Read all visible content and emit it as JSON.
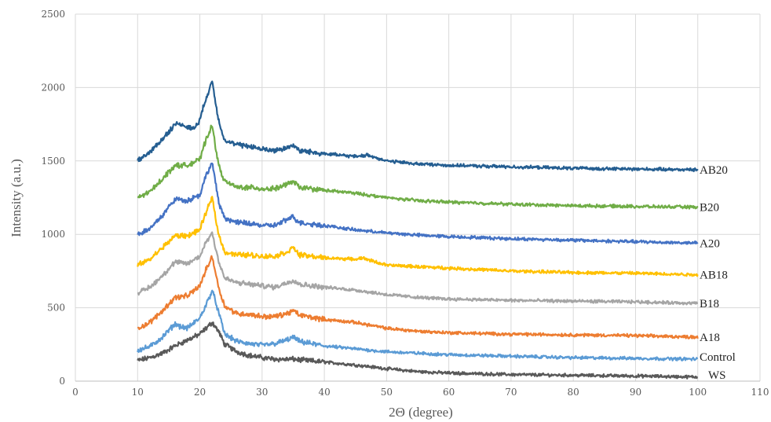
{
  "chart_data": {
    "type": "line",
    "title": "",
    "xlabel": "2Θ (degree)",
    "ylabel": "Intensity (a.u.)",
    "xlim": [
      0,
      110
    ],
    "ylim": [
      0,
      2500
    ],
    "xticks": [
      0,
      10,
      20,
      30,
      40,
      50,
      60,
      70,
      80,
      90,
      100,
      110
    ],
    "yticks": [
      0,
      500,
      1000,
      1500,
      2000,
      2500
    ],
    "grid": true,
    "legend": "inline labels at right end of each series",
    "series": [
      {
        "name": "WS",
        "color": "#595959",
        "x": [
          10,
          12,
          14,
          16,
          18,
          20,
          21,
          22,
          23,
          24,
          26,
          28,
          30,
          32,
          34,
          35,
          36,
          40,
          45,
          50,
          55,
          60,
          70,
          80,
          90,
          100
        ],
        "y": [
          140,
          160,
          190,
          240,
          280,
          320,
          360,
          400,
          340,
          250,
          200,
          175,
          160,
          150,
          148,
          150,
          145,
          130,
          110,
          85,
          65,
          55,
          45,
          40,
          35,
          28
        ]
      },
      {
        "name": "Control",
        "color": "#5b9bd5",
        "x": [
          10,
          12,
          14,
          16,
          17,
          18,
          20,
          21,
          22,
          23,
          24,
          26,
          28,
          30,
          32,
          34,
          35,
          36,
          40,
          45,
          50,
          55,
          60,
          70,
          80,
          90,
          100
        ],
        "y": [
          210,
          235,
          300,
          390,
          370,
          360,
          430,
          520,
          620,
          470,
          320,
          270,
          255,
          245,
          255,
          280,
          300,
          270,
          240,
          220,
          200,
          190,
          180,
          170,
          160,
          155,
          150
        ]
      },
      {
        "name": "A18",
        "color": "#ed7d31",
        "x": [
          10,
          12,
          14,
          16,
          18,
          20,
          21,
          22,
          23,
          24,
          26,
          28,
          30,
          32,
          34,
          35,
          36,
          40,
          45,
          50,
          55,
          60,
          70,
          80,
          90,
          100
        ],
        "y": [
          360,
          400,
          480,
          570,
          580,
          650,
          760,
          850,
          640,
          510,
          460,
          455,
          440,
          440,
          460,
          480,
          450,
          420,
          400,
          360,
          340,
          330,
          320,
          315,
          310,
          300
        ]
      },
      {
        "name": "B18",
        "color": "#a5a5a5",
        "x": [
          10,
          12,
          14,
          16,
          18,
          20,
          21,
          22,
          23,
          24,
          26,
          28,
          30,
          32,
          34,
          35,
          36,
          40,
          45,
          50,
          55,
          60,
          70,
          80,
          90,
          100
        ],
        "y": [
          600,
          640,
          720,
          810,
          800,
          850,
          950,
          1010,
          820,
          700,
          670,
          660,
          650,
          640,
          670,
          690,
          660,
          640,
          620,
          590,
          570,
          560,
          550,
          545,
          540,
          530
        ]
      },
      {
        "name": "AB18",
        "color": "#ffc000",
        "x": [
          10,
          12,
          14,
          16,
          18,
          20,
          21,
          22,
          23,
          24,
          26,
          28,
          30,
          32,
          34,
          35,
          36,
          40,
          45,
          46,
          50,
          55,
          60,
          70,
          80,
          90,
          100
        ],
        "y": [
          790,
          830,
          910,
          990,
          990,
          1030,
          1150,
          1250,
          1000,
          880,
          860,
          860,
          850,
          850,
          880,
          910,
          860,
          840,
          830,
          840,
          790,
          780,
          770,
          750,
          740,
          735,
          725
        ]
      },
      {
        "name": "A20",
        "color": "#4472c4",
        "x": [
          10,
          12,
          14,
          16,
          18,
          20,
          21,
          22,
          23,
          24,
          26,
          28,
          30,
          32,
          34,
          35,
          36,
          40,
          45,
          50,
          55,
          60,
          70,
          80,
          90,
          100
        ],
        "y": [
          1000,
          1040,
          1130,
          1240,
          1230,
          1270,
          1400,
          1490,
          1220,
          1110,
          1080,
          1075,
          1060,
          1060,
          1100,
          1120,
          1080,
          1060,
          1030,
          1010,
          995,
          985,
          970,
          960,
          950,
          940
        ]
      },
      {
        "name": "B20",
        "color": "#70ad47",
        "x": [
          10,
          12,
          14,
          16,
          18,
          20,
          21,
          22,
          23,
          24,
          26,
          28,
          30,
          32,
          34,
          35,
          36,
          40,
          45,
          50,
          55,
          60,
          70,
          80,
          90,
          100
        ],
        "y": [
          1250,
          1290,
          1380,
          1470,
          1470,
          1510,
          1650,
          1740,
          1470,
          1360,
          1320,
          1320,
          1310,
          1310,
          1340,
          1360,
          1320,
          1300,
          1280,
          1250,
          1230,
          1220,
          1205,
          1195,
          1190,
          1185
        ]
      },
      {
        "name": "AB20",
        "color": "#255e91",
        "x": [
          10,
          12,
          14,
          16,
          17,
          18,
          19,
          20,
          21,
          22,
          23,
          24,
          26,
          28,
          30,
          32,
          34,
          35,
          36,
          40,
          45,
          47,
          50,
          55,
          60,
          70,
          80,
          90,
          100
        ],
        "y": [
          1500,
          1560,
          1650,
          1750,
          1750,
          1730,
          1720,
          1780,
          1930,
          2040,
          1780,
          1640,
          1610,
          1600,
          1580,
          1570,
          1590,
          1610,
          1570,
          1550,
          1530,
          1540,
          1500,
          1480,
          1470,
          1460,
          1450,
          1445,
          1440
        ]
      }
    ]
  }
}
